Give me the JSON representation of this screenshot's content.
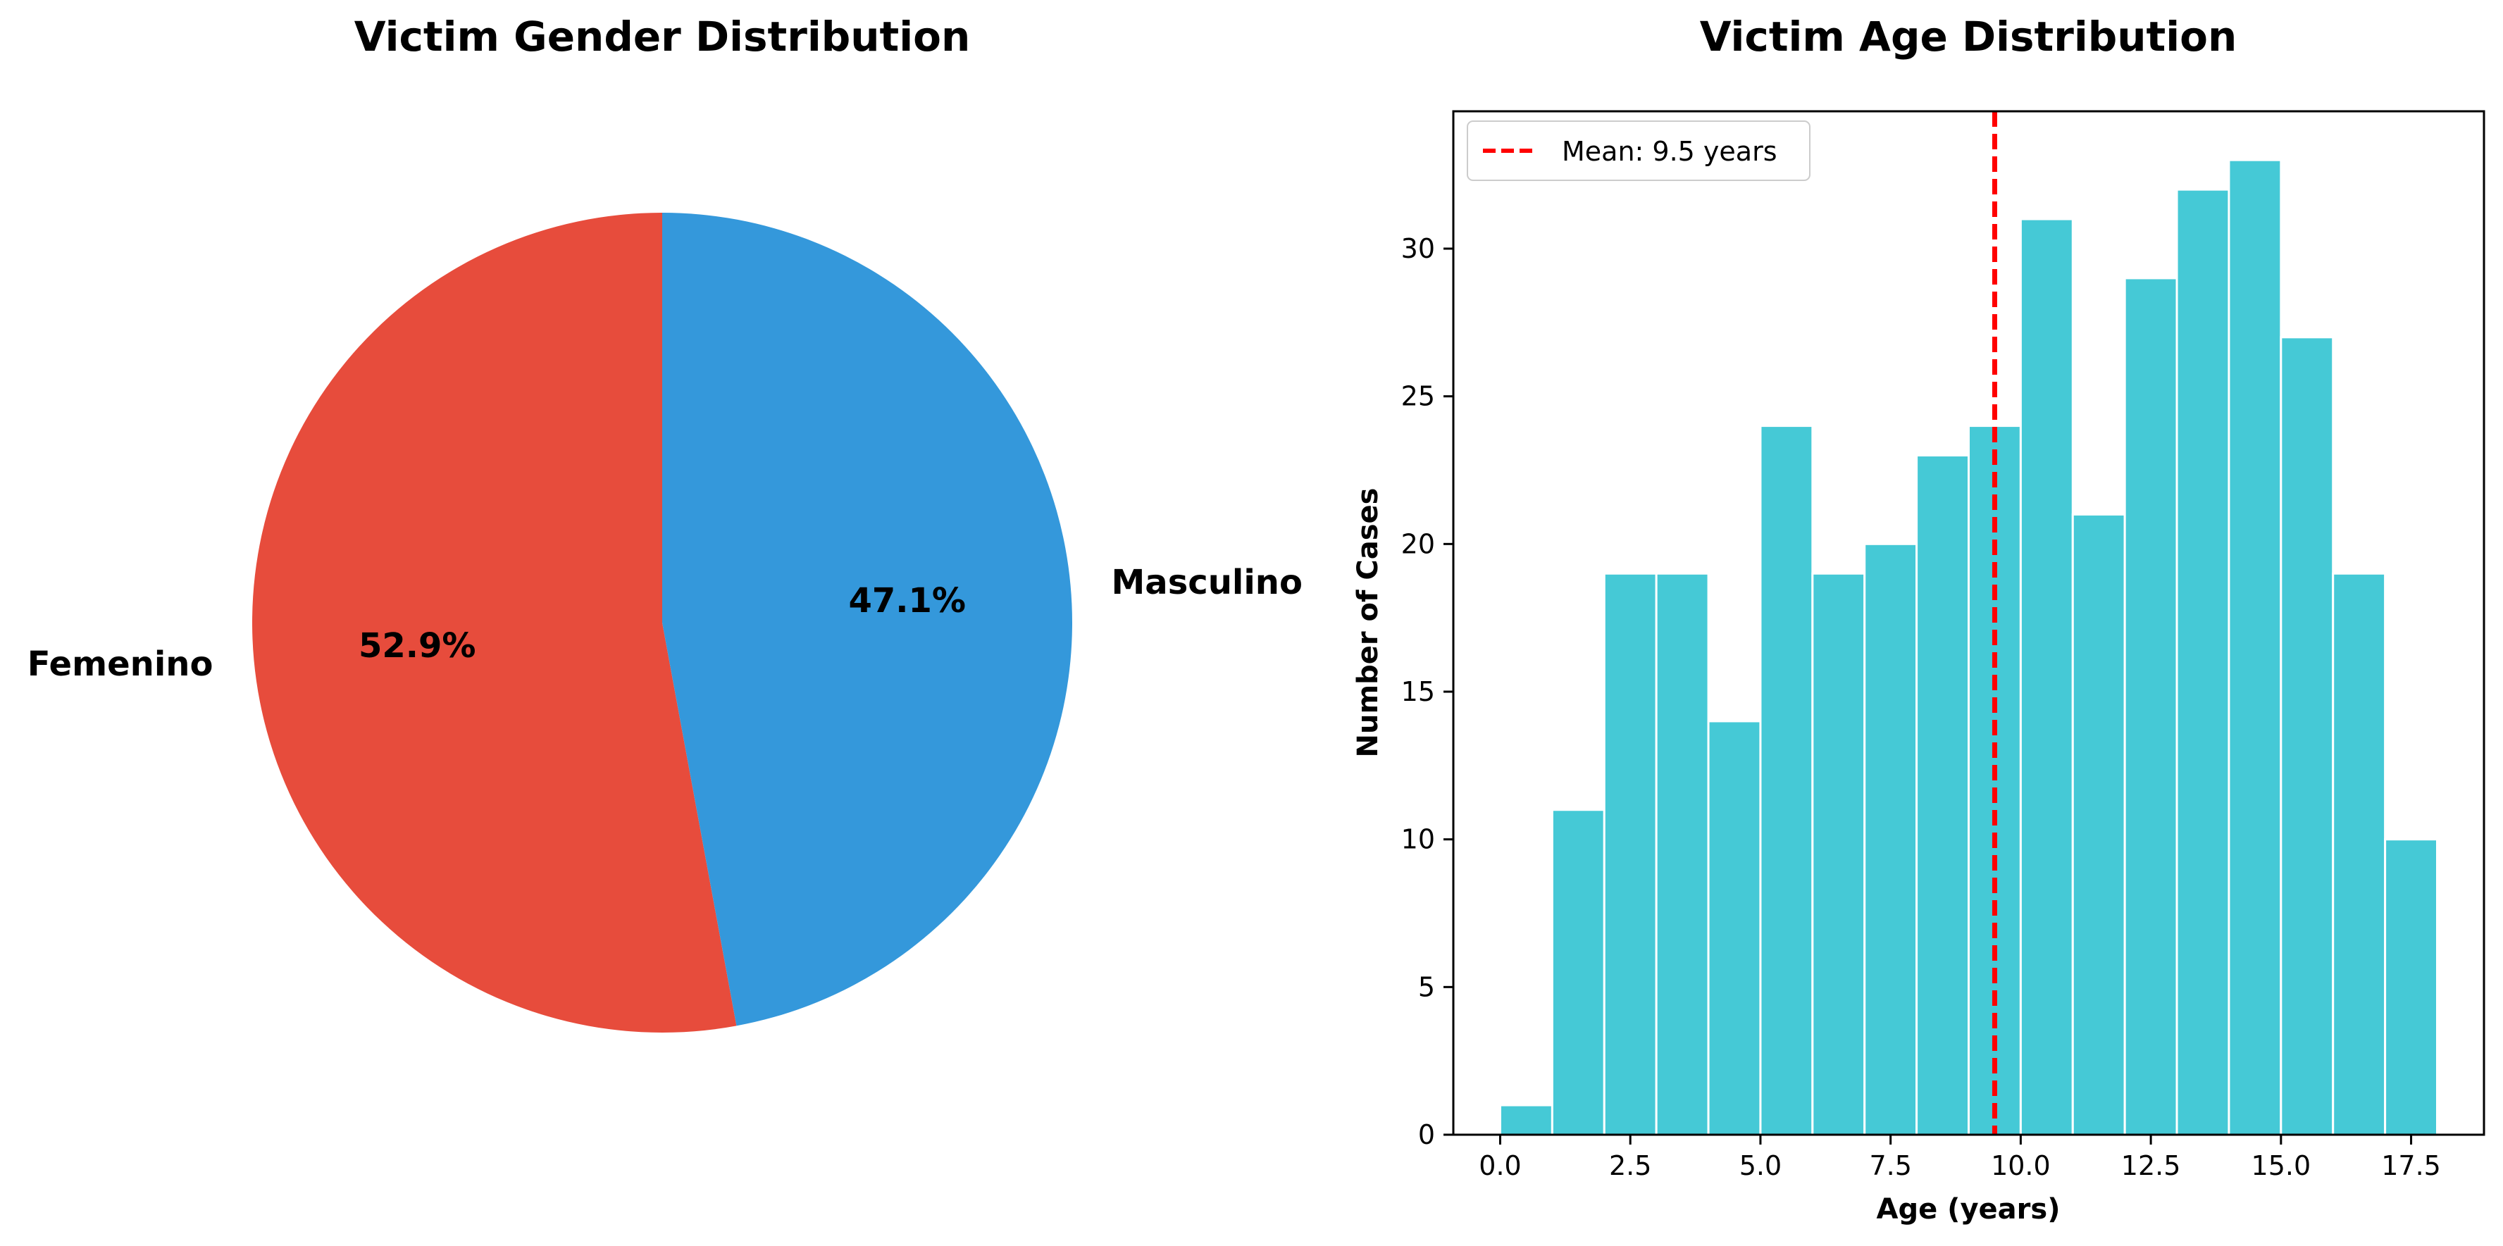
{
  "chart_data": [
    {
      "type": "pie",
      "title": "Victim Gender Distribution",
      "labels": [
        "Femenino",
        "Masculino"
      ],
      "values": [
        52.9,
        47.1
      ],
      "percent_labels": [
        "52.9%",
        "47.1%"
      ],
      "colors": [
        "#e74c3c",
        "#3498db"
      ],
      "start_angle_deg": 90,
      "direction": "counterclockwise"
    },
    {
      "type": "bar",
      "subtype": "histogram",
      "title": "Victim Age Distribution",
      "xlabel": "Age (years)",
      "ylabel": "Number of Cases",
      "bin_edges": [
        0,
        1,
        2,
        3,
        4,
        5,
        6,
        7,
        8,
        9,
        10,
        11,
        12,
        13,
        14,
        15,
        16,
        17,
        18
      ],
      "values": [
        1,
        11,
        19,
        19,
        14,
        24,
        19,
        20,
        23,
        24,
        31,
        21,
        29,
        32,
        33,
        27,
        19,
        10
      ],
      "bar_color": "#45c9d6",
      "bar_edge_color": "#ffffff",
      "xlim": [
        -0.9,
        18.9
      ],
      "ylim": [
        0,
        34.65
      ],
      "xticks": [
        0,
        2.5,
        5,
        7.5,
        10,
        12.5,
        15,
        17.5
      ],
      "xtick_labels": [
        "0.0",
        "2.5",
        "5.0",
        "7.5",
        "10.0",
        "12.5",
        "15.0",
        "17.5"
      ],
      "yticks": [
        0,
        5,
        10,
        15,
        20,
        25,
        30
      ],
      "ytick_labels": [
        "0",
        "5",
        "10",
        "15",
        "20",
        "25",
        "30"
      ],
      "mean_line": {
        "value": 9.5,
        "color": "#ff0000",
        "style": "dashed",
        "label": "Mean: 9.5 years"
      },
      "legend_position": "upper left",
      "grid": false
    }
  ]
}
